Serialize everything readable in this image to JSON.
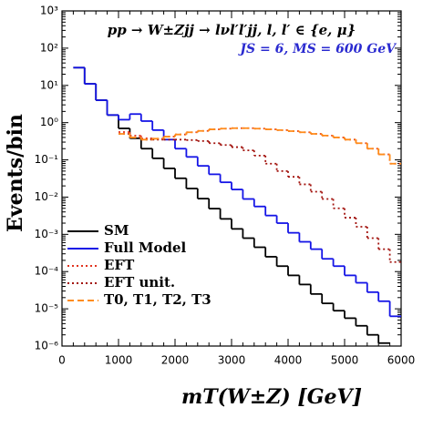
{
  "chart_data": {
    "type": "histogram",
    "title": "pp → W±Zjj → lνl′l′jj, l, l′ ∈ {e, μ}",
    "subtitle": "JS = 6, MS = 600 GeV",
    "x_label": "mT(W±Z) [GeV]",
    "y_label": "Events/bin",
    "log_y": true,
    "legend": "lower left",
    "bins": [
      0,
      200,
      400,
      600,
      800,
      1000,
      1200,
      1400,
      1600,
      1800,
      2000,
      2200,
      2400,
      2600,
      2800,
      3000,
      3200,
      3400,
      3600,
      3800,
      4000,
      4200,
      4400,
      4600,
      4800,
      5000,
      5200,
      5400,
      5600,
      5800,
      6000
    ],
    "series": [
      {
        "name": "SM",
        "color": "#000000",
        "dash": "solid",
        "values": [
          null,
          30,
          11,
          4,
          1.6,
          0.7,
          0.38,
          0.2,
          0.11,
          0.059,
          0.032,
          0.017,
          0.0091,
          0.0049,
          0.0026,
          0.0014,
          0.00079,
          0.00045,
          0.00025,
          0.00014,
          7.9e-05,
          4.5e-05,
          2.5e-05,
          1.4e-05,
          8.9e-06,
          5.6e-06,
          3.5e-06,
          2e-06,
          1.2e-06,
          null
        ]
      },
      {
        "name": "Full Model",
        "color": "#1414e6",
        "dash": "solid",
        "values": [
          null,
          30,
          11,
          4,
          1.6,
          1.2,
          1.7,
          1.1,
          0.63,
          0.35,
          0.2,
          0.12,
          0.069,
          0.041,
          0.025,
          0.016,
          0.0089,
          0.0056,
          0.0032,
          0.002,
          0.0011,
          0.00063,
          0.0004,
          0.00022,
          0.00014,
          7.9e-05,
          5e-05,
          2.8e-05,
          1.6e-05,
          6.3e-06
        ]
      },
      {
        "name": "EFT",
        "color": "#e2331f",
        "dash": "dotted",
        "values": [
          null,
          null,
          null,
          null,
          null,
          0.56,
          0.45,
          0.38,
          0.37,
          0.42,
          0.48,
          0.55,
          0.6,
          0.66,
          0.69,
          0.71,
          0.71,
          0.69,
          0.66,
          0.63,
          0.59,
          0.55,
          0.5,
          0.45,
          0.4,
          0.35,
          0.28,
          0.2,
          0.14,
          0.079
        ]
      },
      {
        "name": "EFT unit.",
        "color": "#a3140f",
        "dash": "dotted",
        "values": [
          null,
          null,
          null,
          null,
          null,
          0.5,
          0.4,
          0.35,
          0.35,
          0.35,
          0.35,
          0.34,
          0.32,
          0.28,
          0.25,
          0.22,
          0.18,
          0.13,
          0.079,
          0.05,
          0.035,
          0.022,
          0.014,
          0.0089,
          0.005,
          0.0028,
          0.0016,
          0.00079,
          0.0004,
          0.00018
        ]
      },
      {
        "name": "T0, T1, T2, T3",
        "color": "#ff8c1a",
        "dash": "dashed",
        "values": [
          null,
          null,
          null,
          null,
          null,
          0.5,
          0.4,
          0.35,
          0.37,
          0.42,
          0.48,
          0.55,
          0.6,
          0.66,
          0.69,
          0.71,
          0.71,
          0.69,
          0.66,
          0.63,
          0.59,
          0.55,
          0.5,
          0.45,
          0.4,
          0.35,
          0.28,
          0.2,
          0.14,
          0.079
        ]
      }
    ],
    "xlim": [
      0,
      6000
    ],
    "xticks": [
      0,
      1000,
      2000,
      3000,
      4000,
      5000,
      6000
    ],
    "ylim": [
      1e-06,
      1000
    ],
    "yticks": [
      {
        "value": 1e-06,
        "label": "10⁻⁶"
      },
      {
        "value": 1e-05,
        "label": "10⁻⁵"
      },
      {
        "value": 0.0001,
        "label": "10⁻⁴"
      },
      {
        "value": 0.001,
        "label": "10⁻³"
      },
      {
        "value": 0.01,
        "label": "10⁻²"
      },
      {
        "value": 0.1,
        "label": "10⁻¹"
      },
      {
        "value": 1,
        "label": "10⁰"
      },
      {
        "value": 10,
        "label": "10¹"
      },
      {
        "value": 100,
        "label": "10²"
      },
      {
        "value": 1000,
        "label": "10³"
      }
    ]
  }
}
